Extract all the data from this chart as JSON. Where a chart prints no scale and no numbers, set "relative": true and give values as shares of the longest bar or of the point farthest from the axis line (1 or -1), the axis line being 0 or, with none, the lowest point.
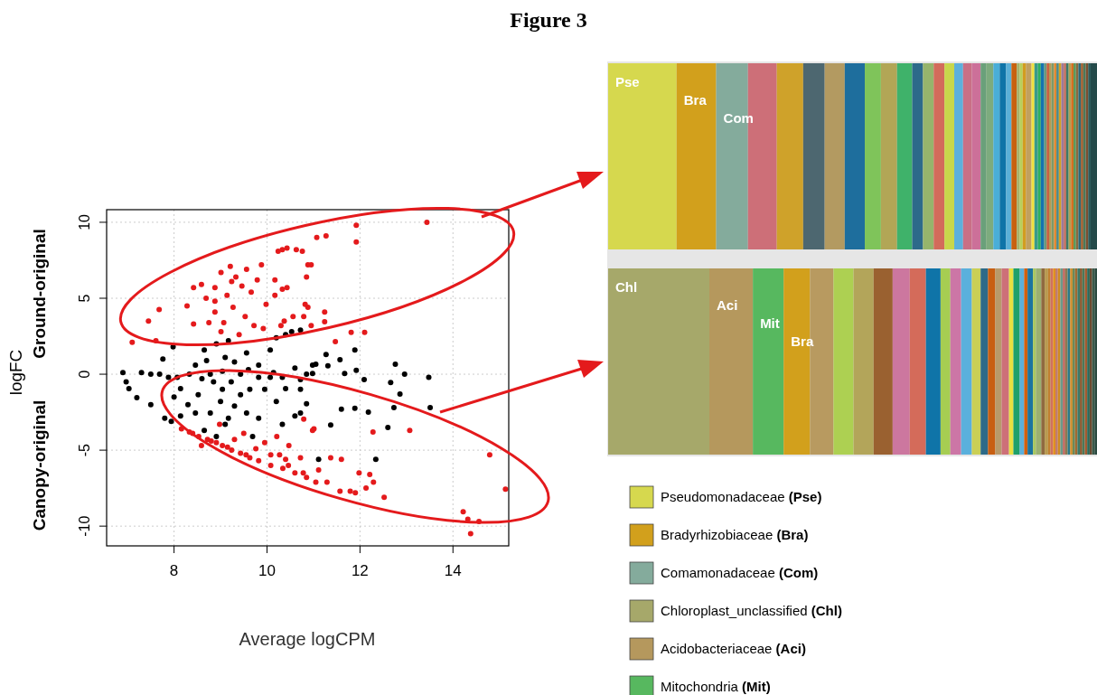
{
  "chart_data": [
    {
      "type": "scatter",
      "title": "Figure 3",
      "xlabel": "Average logCPM",
      "ylabel": "logFC",
      "annotations": [
        "Ground-original",
        "Canopy-original"
      ],
      "xlim": [
        6.55,
        15.2
      ],
      "ylim": [
        -11.3,
        10.83
      ],
      "xticks": [
        8,
        10,
        12,
        14
      ],
      "yticks": [
        -10,
        -5,
        0,
        5,
        10
      ],
      "grid": true,
      "marker": "circle",
      "series": [
        {
          "color": "#000000",
          "x": [
            6.9,
            6.97,
            7.03,
            7.2,
            7.5,
            7.76,
            7.98,
            7.8,
            7.94,
            8.33,
            8.65,
            8.91,
            9.17,
            9.04,
            8.78,
            9.1,
            9.3,
            9.43,
            9.56,
            9.82,
            10.07,
            10.2,
            10.4,
            9.95,
            10.2,
            10.33,
            10.6,
            10.72,
            10.85,
            10.98,
            10.6,
            8.52,
            8.14,
            8.46,
            8.85,
            9.23,
            9.63,
            9.82,
            10.07,
            10.33,
            8.65,
            8.91,
            9.17,
            8.46,
            8.14,
            7.69,
            7.88,
            8.07,
            8.78,
            9.04,
            9.43,
            9.56,
            9.82,
            9.69,
            10.14,
            10.4,
            10.72,
            11.05,
            11.31,
            11.57,
            11.67,
            11.92,
            12.09,
            11.89,
            12.76,
            12.96,
            13.48,
            12.66,
            12.86,
            12.73,
            13.51,
            12.6,
            12.34,
            12.18,
            11.6,
            11.89,
            11.37,
            11.11,
            10.72,
            10.85,
            10.53,
            10.72,
            11.27,
            10.98,
            7.3,
            7.5,
            8.0,
            8.3,
            8.6,
            9.0,
            9.3,
            9.6,
            8.7,
            9.1
          ],
          "values": [
            0.1,
            -0.5,
            -0.95,
            -1.55,
            -2.0,
            1.0,
            1.8,
            -2.9,
            -3.1,
            0.0,
            1.6,
            2.0,
            2.2,
            -1.0,
            -2.55,
            -3.3,
            -2.1,
            0.0,
            1.4,
            0.6,
            1.6,
            2.4,
            2.6,
            -1.0,
            -1.8,
            -3.3,
            -2.75,
            -1.0,
            0.0,
            0.6,
            0.4,
            -1.35,
            -0.95,
            0.6,
            -0.5,
            -0.5,
            -1.0,
            -0.2,
            -0.2,
            -0.2,
            -3.7,
            -4.1,
            -2.9,
            -2.55,
            -2.75,
            0.0,
            -0.2,
            -0.2,
            0.0,
            0.2,
            -1.35,
            -2.55,
            -2.9,
            -4.1,
            0.1,
            -0.95,
            -0.35,
            0.65,
            0.55,
            0.95,
            0.05,
            0.25,
            -0.35,
            1.6,
            0.65,
            0.0,
            -0.2,
            -0.55,
            -1.3,
            -2.2,
            -2.2,
            -3.5,
            -5.6,
            -2.5,
            -2.3,
            -2.25,
            -3.35,
            -5.6,
            -2.55,
            -1.95,
            2.8,
            2.9,
            1.3,
            0.05,
            0.1,
            0.0,
            -1.5,
            -2.0,
            -0.3,
            -1.8,
            0.8,
            0.3,
            0.9,
            1.1
          ]
        },
        {
          "color": "#e41a1c",
          "x": [
            7.1,
            7.45,
            7.61,
            7.68,
            8.28,
            8.42,
            8.59,
            8.69,
            8.88,
            9.01,
            9.14,
            9.24,
            9.33,
            9.46,
            9.56,
            9.66,
            9.79,
            9.88,
            8.88,
            9.07,
            9.27,
            9.53,
            9.72,
            9.98,
            10.17,
            10.24,
            10.43,
            10.76,
            10.95,
            10.85,
            10.43,
            10.56,
            10.88,
            11.07,
            11.27,
            8.42,
            8.75,
            9.01,
            9.4,
            9.92,
            10.3,
            10.17,
            9.21,
            8.88,
            11.92,
            11.92,
            13.44,
            10.33,
            10.63,
            10.88,
            10.33,
            10.82,
            11.24,
            11.24,
            10.95,
            10.79,
            11.81,
            12.1,
            11.47,
            10.37,
            8.16,
            8.33,
            8.53,
            8.72,
            8.91,
            9.04,
            9.24,
            9.43,
            9.63,
            9.82,
            10.08,
            10.34,
            10.6,
            10.85,
            11.05,
            8.98,
            9.5,
            9.95,
            10.21,
            10.47,
            10.79,
            10.98,
            10.72,
            11.11,
            9.76,
            9.3,
            8.59,
            10.08,
            10.4,
            11.01,
            12.28,
            13.07,
            11.37,
            11.6,
            11.98,
            12.21,
            12.29,
            12.13,
            11.9,
            11.79,
            11.57,
            11.29,
            12.52,
            14.79,
            14.22,
            14.32,
            14.56,
            14.38,
            15.13,
            10.46,
            10.78,
            10.27,
            8.4,
            8.8,
            9.15,
            9.55
          ],
          "values": [
            2.1,
            3.5,
            2.2,
            4.25,
            4.5,
            5.7,
            5.9,
            5.0,
            5.7,
            6.7,
            5.2,
            6.1,
            6.4,
            5.8,
            6.9,
            5.4,
            6.2,
            7.2,
            4.1,
            3.4,
            4.4,
            3.8,
            3.2,
            4.6,
            6.2,
            8.1,
            8.3,
            8.1,
            7.2,
            6.4,
            5.7,
            3.8,
            4.4,
            9.0,
            9.1,
            3.3,
            3.4,
            2.8,
            2.6,
            3.0,
            3.2,
            5.2,
            7.1,
            4.8,
            9.8,
            8.7,
            10.0,
            8.2,
            8.2,
            7.2,
            5.6,
            4.6,
            4.1,
            3.45,
            3.2,
            3.8,
            2.75,
            2.75,
            2.15,
            3.5,
            -3.6,
            -3.8,
            -4.1,
            -4.3,
            -4.5,
            -4.7,
            -5.0,
            -5.2,
            -5.5,
            -5.7,
            -6.0,
            -6.2,
            -6.5,
            -6.8,
            -7.1,
            -3.3,
            -3.9,
            -4.5,
            -4.1,
            -4.7,
            -2.95,
            -3.7,
            -5.5,
            -6.3,
            -4.9,
            -4.3,
            -4.7,
            -5.3,
            -5.6,
            -3.6,
            -3.8,
            -3.7,
            -5.5,
            -5.6,
            -6.5,
            -6.6,
            -7.1,
            -7.5,
            -7.8,
            -7.7,
            -7.7,
            -7.1,
            -8.1,
            -5.3,
            -9.05,
            -9.55,
            -9.7,
            -10.5,
            -7.56,
            -6.0,
            -6.5,
            -5.3,
            -3.9,
            -4.4,
            -4.8,
            -5.3
          ]
        }
      ]
    },
    {
      "type": "bar",
      "orientation": "horizontal",
      "stacked": true,
      "relative": true,
      "categories": [
        null
      ],
      "series": [
        {
          "name": "Pse",
          "color": "#d6d84e",
          "values": [
            0.14
          ]
        },
        {
          "name": "Bra",
          "color": "#d2a01c",
          "values": [
            0.081
          ]
        },
        {
          "name": "Com",
          "color": "#84ab9c",
          "values": [
            0.065
          ]
        },
        {
          "color": "#cd6f78",
          "values": [
            0.059
          ]
        },
        {
          "color": "#cfa22a",
          "values": [
            0.054
          ]
        },
        {
          "color": "#4d6770",
          "values": [
            0.044
          ]
        },
        {
          "color": "#b39a61",
          "values": [
            0.041
          ]
        },
        {
          "color": "#1e6e9d",
          "values": [
            0.041
          ]
        },
        {
          "color": "#7fc45a",
          "values": [
            0.033
          ]
        },
        {
          "color": "#b2a656",
          "values": [
            0.033
          ]
        },
        {
          "color": "#3fb26a",
          "values": [
            0.031
          ]
        },
        {
          "color": "#2d6a8a",
          "values": [
            0.022
          ]
        },
        {
          "color": "#96b46c",
          "values": [
            0.022
          ]
        },
        {
          "color": "#d36b5b",
          "values": [
            0.022
          ]
        },
        {
          "color": "#c8d74b",
          "values": [
            0.02
          ]
        },
        {
          "color": "#5cb0dc",
          "values": [
            0.018
          ]
        },
        {
          "color": "#c96f85",
          "values": [
            0.018
          ]
        },
        {
          "color": "#cc7099",
          "values": [
            0.018
          ]
        },
        {
          "color": "#6aa07a",
          "values": [
            0.011
          ]
        },
        {
          "color": "#7dab7e",
          "values": [
            0.015
          ]
        },
        {
          "color": "#4aaed8",
          "values": [
            0.013
          ]
        },
        {
          "color": "#0f74a8",
          "values": [
            0.013
          ]
        },
        {
          "color": "#5ab0d8",
          "values": [
            0.011
          ]
        },
        {
          "color": "#c8610f",
          "values": [
            0.011
          ]
        },
        {
          "color": "#a6b36a",
          "values": [
            0.006
          ]
        },
        {
          "color": "#b8d05a",
          "values": [
            0.006
          ]
        },
        {
          "color": "#d29d20",
          "values": [
            0.007
          ]
        },
        {
          "color": "#c0a060",
          "values": [
            0.011
          ]
        },
        {
          "color": "#f0e040",
          "values": [
            0.006
          ]
        },
        {
          "color": "#3a9a8a",
          "values": [
            0.007
          ]
        },
        {
          "color": "#2fae5f",
          "values": [
            0.006
          ]
        },
        {
          "color": "#1673b0",
          "values": [
            0.007
          ]
        },
        {
          "color": "#6a9a7a",
          "values": [
            0.005
          ]
        },
        {
          "color": "#c86040",
          "values": [
            0.005
          ]
        },
        {
          "color": "#b89a50",
          "values": [
            0.005
          ]
        },
        {
          "color": "#7a9a6a",
          "values": [
            0.005
          ]
        },
        {
          "color": "#e08830",
          "values": [
            0.005
          ]
        },
        {
          "color": "#4a8a8a",
          "values": [
            0.005
          ]
        },
        {
          "color": "#d4a020",
          "values": [
            0.005
          ]
        },
        {
          "color": "#9a7a9a",
          "values": [
            0.005
          ]
        },
        {
          "color": "#c07060",
          "values": [
            0.005
          ]
        },
        {
          "color": "#3a7a6a",
          "values": [
            0.005
          ]
        },
        {
          "color": "#b0a050",
          "values": [
            0.005
          ]
        },
        {
          "color": "#d47020",
          "values": [
            0.005
          ]
        },
        {
          "color": "#5a9a5a",
          "values": [
            0.005
          ]
        },
        {
          "color": "#8a6a40",
          "values": [
            0.005
          ]
        },
        {
          "color": "#2a6a7a",
          "values": [
            0.005
          ]
        },
        {
          "color": "#a06030",
          "values": [
            0.005
          ]
        },
        {
          "color": "#4a7a5a",
          "values": [
            0.005
          ]
        },
        {
          "color": "#7a5030",
          "values": [
            0.005
          ]
        },
        {
          "color": "#2a5a5a",
          "values": [
            0.005
          ]
        },
        {
          "color": "#244a4a",
          "values": [
            0.013
          ]
        }
      ]
    },
    {
      "type": "bar",
      "orientation": "horizontal",
      "stacked": true,
      "relative": true,
      "categories": [
        null
      ],
      "series": [
        {
          "name": "Chl",
          "color": "#a6a86a",
          "values": [
            0.207
          ]
        },
        {
          "name": "Aci",
          "color": "#b5985d",
          "values": [
            0.089
          ]
        },
        {
          "name": "Mit",
          "color": "#57b85f",
          "values": [
            0.063
          ]
        },
        {
          "name": "Bra",
          "color": "#d2a01c",
          "values": [
            0.054
          ]
        },
        {
          "color": "#b89a60",
          "values": [
            0.048
          ]
        },
        {
          "color": "#add052",
          "values": [
            0.041
          ]
        },
        {
          "color": "#b3a55a",
          "values": [
            0.041
          ]
        },
        {
          "color": "#9a6130",
          "values": [
            0.039
          ]
        },
        {
          "color": "#cc779f",
          "values": [
            0.035
          ]
        },
        {
          "color": "#d46b5a",
          "values": [
            0.033
          ]
        },
        {
          "color": "#0f74a8",
          "values": [
            0.03
          ]
        },
        {
          "color": "#a6cd52",
          "values": [
            0.02
          ]
        },
        {
          "color": "#cc76a6",
          "values": [
            0.022
          ]
        },
        {
          "color": "#5ab0dc",
          "values": [
            0.022
          ]
        },
        {
          "color": "#cacf55",
          "values": [
            0.018
          ]
        },
        {
          "color": "#2d6a88",
          "values": [
            0.015
          ]
        },
        {
          "color": "#c85f12",
          "values": [
            0.015
          ]
        },
        {
          "color": "#b89a6a",
          "values": [
            0.013
          ]
        },
        {
          "color": "#cd7078",
          "values": [
            0.015
          ]
        },
        {
          "color": "#e8e040",
          "values": [
            0.009
          ]
        },
        {
          "color": "#1fa06a",
          "values": [
            0.013
          ]
        },
        {
          "color": "#5ab0dd",
          "values": [
            0.009
          ]
        },
        {
          "color": "#d06010",
          "values": [
            0.007
          ]
        },
        {
          "color": "#1a74a0",
          "values": [
            0.011
          ]
        },
        {
          "color": "#a8c860",
          "values": [
            0.006
          ]
        },
        {
          "color": "#9ab070",
          "values": [
            0.011
          ]
        },
        {
          "color": "#906a40",
          "values": [
            0.007
          ]
        },
        {
          "color": "#b89a50",
          "values": [
            0.007
          ]
        },
        {
          "color": "#c08030",
          "values": [
            0.005
          ]
        },
        {
          "color": "#d07060",
          "values": [
            0.005
          ]
        },
        {
          "color": "#e09020",
          "values": [
            0.005
          ]
        },
        {
          "color": "#c07a70",
          "values": [
            0.005
          ]
        },
        {
          "color": "#d08a20",
          "values": [
            0.005
          ]
        },
        {
          "color": "#6a9a8a",
          "values": [
            0.005
          ]
        },
        {
          "color": "#c06a60",
          "values": [
            0.005
          ]
        },
        {
          "color": "#8a7a50",
          "values": [
            0.005
          ]
        },
        {
          "color": "#2a7a8a",
          "values": [
            0.005
          ]
        },
        {
          "color": "#d09030",
          "values": [
            0.005
          ]
        },
        {
          "color": "#6a8a5a",
          "values": [
            0.005
          ]
        },
        {
          "color": "#a06a30",
          "values": [
            0.005
          ]
        },
        {
          "color": "#3a7a6a",
          "values": [
            0.005
          ]
        },
        {
          "color": "#8a5a30",
          "values": [
            0.005
          ]
        },
        {
          "color": "#4a7a5a",
          "values": [
            0.005
          ]
        },
        {
          "color": "#a05a30",
          "values": [
            0.005
          ]
        },
        {
          "color": "#2a6a5a",
          "values": [
            0.005
          ]
        },
        {
          "color": "#6a4a30",
          "values": [
            0.005
          ]
        },
        {
          "color": "#3a5a4a",
          "values": [
            0.005
          ]
        },
        {
          "color": "#2a4a40",
          "values": [
            0.005
          ]
        }
      ]
    },
    {
      "type": "other",
      "categories": [
        "Pseudomonadaceae (Pse)",
        "Bradyrhizobiaceae (Bra)",
        "Comamonadaceae (Com)",
        "Chloroplast_unclassified (Chl)",
        "Acidobacteriaceae (Aci)",
        "Mitochondria (Mit)"
      ],
      "colors": [
        "#d6d84e",
        "#d2a01c",
        "#84ab9c",
        "#a6a86a",
        "#b5985d",
        "#57b85f"
      ]
    }
  ]
}
